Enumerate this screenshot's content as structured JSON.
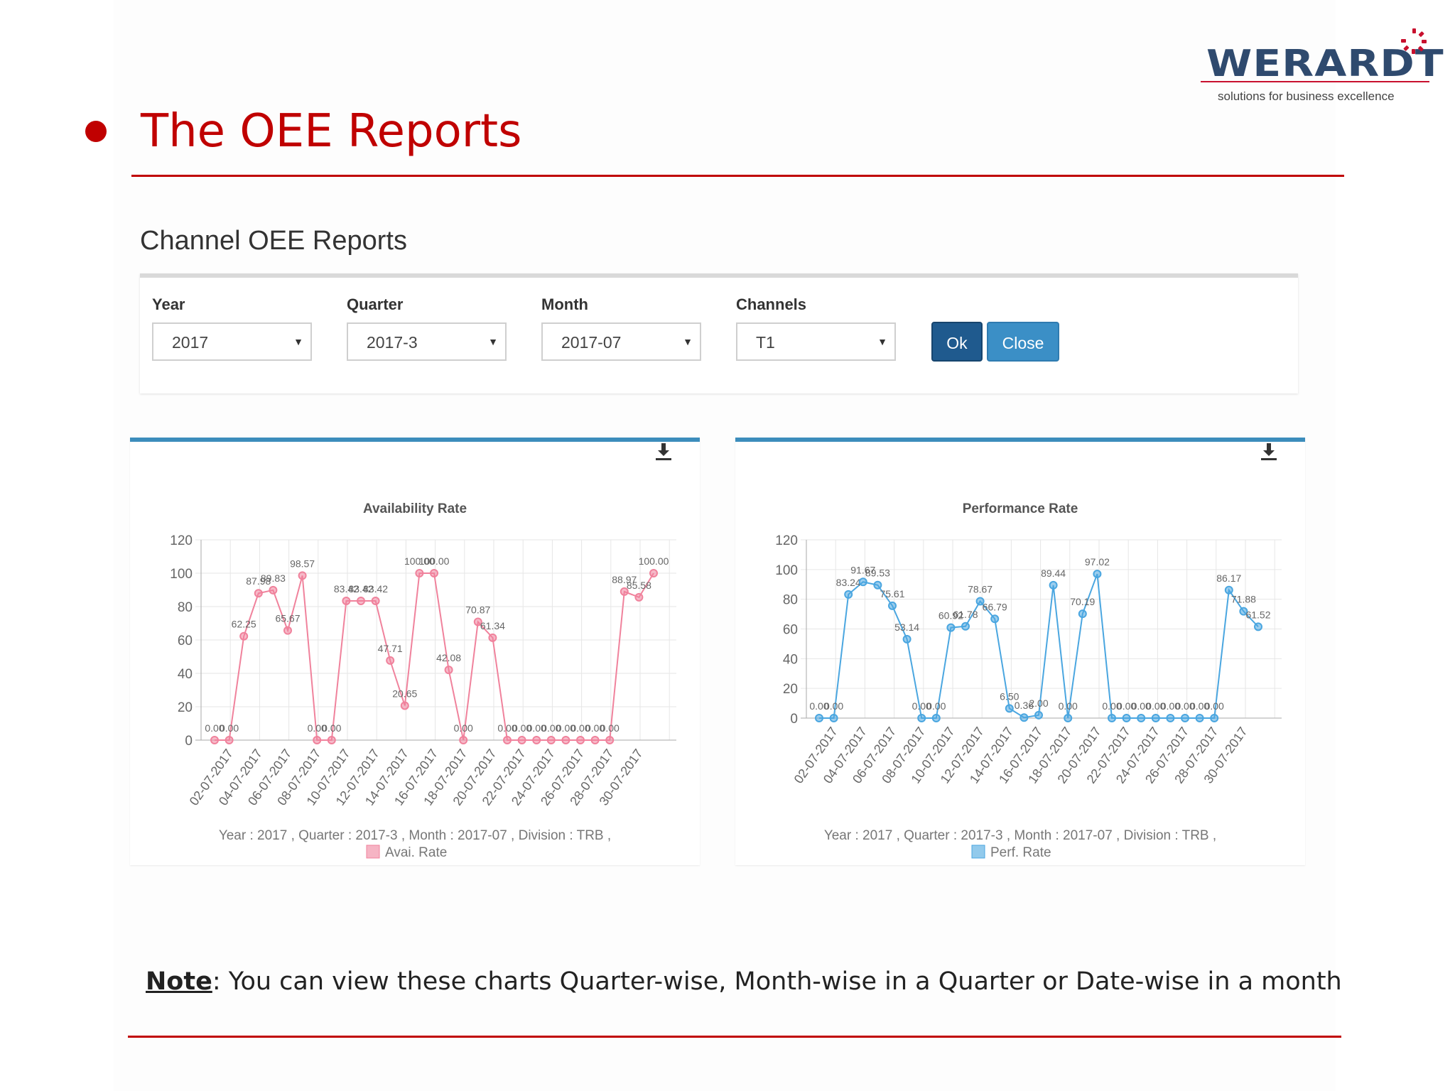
{
  "logo": {
    "text": "WERARDT",
    "tagline": "solutions for business excellence"
  },
  "slide": {
    "title": "The OEE Reports",
    "note_label": "Note",
    "note_text": ": You can view these charts Quarter-wise, Month-wise in a Quarter or Date-wise in a month"
  },
  "page": {
    "heading": "Channel OEE Reports"
  },
  "filters": {
    "year": {
      "label": "Year",
      "value": "2017"
    },
    "quarter": {
      "label": "Quarter",
      "value": "2017-3"
    },
    "month": {
      "label": "Month",
      "value": "2017-07"
    },
    "channels": {
      "label": "Channels",
      "value": "T1"
    },
    "ok_label": "Ok",
    "close_label": "Close"
  },
  "icons": {
    "download": "download-icon",
    "dropdown": "caret-down-icon"
  },
  "colors": {
    "title_red": "#c00000",
    "availability": "#f0829c",
    "performance": "#4aa6e0",
    "ok_button": "#1f5a8e",
    "close_button": "#3b8fc6",
    "card_border": "#3c8dbc"
  },
  "chart_data": [
    {
      "type": "line",
      "title": "Availability Rate",
      "subtitle": "Year : 2017 , Quarter : 2017-3 , Month : 2017-07 , Division : TRB ,",
      "legend": "Avai. Rate",
      "color": "#f0829c",
      "grid": true,
      "ylim": [
        0,
        120
      ],
      "yticks": [
        0,
        20,
        40,
        60,
        80,
        100,
        120
      ],
      "tick_labels": [
        "02-07-2017",
        "04-07-2017",
        "06-07-2017",
        "08-07-2017",
        "10-07-2017",
        "12-07-2017",
        "14-07-2017",
        "16-07-2017",
        "18-07-2017",
        "20-07-2017",
        "22-07-2017",
        "24-07-2017",
        "26-07-2017",
        "28-07-2017",
        "30-07-2017"
      ],
      "x": [
        "01-07-2017",
        "02-07-2017",
        "03-07-2017",
        "04-07-2017",
        "05-07-2017",
        "06-07-2017",
        "07-07-2017",
        "08-07-2017",
        "09-07-2017",
        "10-07-2017",
        "11-07-2017",
        "12-07-2017",
        "13-07-2017",
        "14-07-2017",
        "15-07-2017",
        "16-07-2017",
        "17-07-2017",
        "18-07-2017",
        "19-07-2017",
        "20-07-2017",
        "21-07-2017",
        "22-07-2017",
        "23-07-2017",
        "24-07-2017",
        "25-07-2017",
        "26-07-2017",
        "27-07-2017",
        "28-07-2017",
        "29-07-2017",
        "30-07-2017",
        "31-07-2017"
      ],
      "values": [
        0.0,
        0.0,
        62.25,
        87.98,
        89.83,
        65.67,
        98.57,
        0.0,
        0.0,
        83.42,
        83.42,
        83.42,
        47.71,
        20.65,
        100.0,
        100.0,
        42.08,
        0.0,
        70.87,
        61.34,
        0.0,
        0.0,
        0.0,
        0.0,
        0.0,
        0.0,
        0.0,
        0.0,
        88.97,
        85.58,
        100.0
      ],
      "labels": [
        "0.00",
        "0.00",
        "62.25",
        "87.98",
        "89.83",
        "65.67",
        "98.57",
        "0.00",
        "0.00",
        "83.42",
        "83.42",
        "83.42",
        "47.71",
        "20.65",
        "100.00",
        "100.00",
        "42.08",
        "0.00",
        "70.87",
        "61.34",
        "0.00",
        "0.00",
        "0.00",
        "0.00",
        "0.00",
        "0.00",
        "0.00",
        "0.00",
        "88.97",
        "85.58",
        "100.00"
      ]
    },
    {
      "type": "line",
      "title": "Performance Rate",
      "subtitle": "Year : 2017 , Quarter : 2017-3 , Month : 2017-07 , Division : TRB ,",
      "legend": "Perf. Rate",
      "color": "#4aa6e0",
      "grid": true,
      "ylim": [
        0,
        120
      ],
      "yticks": [
        0,
        20,
        40,
        60,
        80,
        100,
        120
      ],
      "tick_labels": [
        "02-07-2017",
        "04-07-2017",
        "06-07-2017",
        "08-07-2017",
        "10-07-2017",
        "12-07-2017",
        "14-07-2017",
        "16-07-2017",
        "18-07-2017",
        "20-07-2017",
        "22-07-2017",
        "24-07-2017",
        "26-07-2017",
        "28-07-2017",
        "30-07-2017"
      ],
      "x": [
        "01-07-2017",
        "02-07-2017",
        "03-07-2017",
        "04-07-2017",
        "05-07-2017",
        "06-07-2017",
        "07-07-2017",
        "08-07-2017",
        "09-07-2017",
        "10-07-2017",
        "11-07-2017",
        "12-07-2017",
        "13-07-2017",
        "14-07-2017",
        "15-07-2017",
        "16-07-2017",
        "17-07-2017",
        "18-07-2017",
        "19-07-2017",
        "20-07-2017",
        "21-07-2017",
        "22-07-2017",
        "23-07-2017",
        "24-07-2017",
        "25-07-2017",
        "26-07-2017",
        "27-07-2017",
        "28-07-2017",
        "29-07-2017",
        "30-07-2017",
        "31-07-2017"
      ],
      "values": [
        0.0,
        0.0,
        83.24,
        91.67,
        89.53,
        75.61,
        53.14,
        0.0,
        0.0,
        60.92,
        61.78,
        78.67,
        66.79,
        6.5,
        0.36,
        2.0,
        89.44,
        0.0,
        70.19,
        97.02,
        0.0,
        0.0,
        0.0,
        0.0,
        0.0,
        0.0,
        0.0,
        0.0,
        86.17,
        71.88,
        61.52
      ],
      "labels": [
        "0.00",
        "0.00",
        "83.24",
        "91.67",
        "89.53",
        "75.61",
        "53.14",
        "0.00",
        "0.00",
        "60.92",
        "61.78",
        "78.67",
        "66.79",
        "6.50",
        "0.36",
        "2.00",
        "89.44",
        "0.00",
        "70.19",
        "97.02",
        "0.00",
        "0.00",
        "0.00",
        "0.00",
        "0.00",
        "0.00",
        "0.00",
        "0.00",
        "86.17",
        "71.88",
        "61.52"
      ]
    }
  ]
}
